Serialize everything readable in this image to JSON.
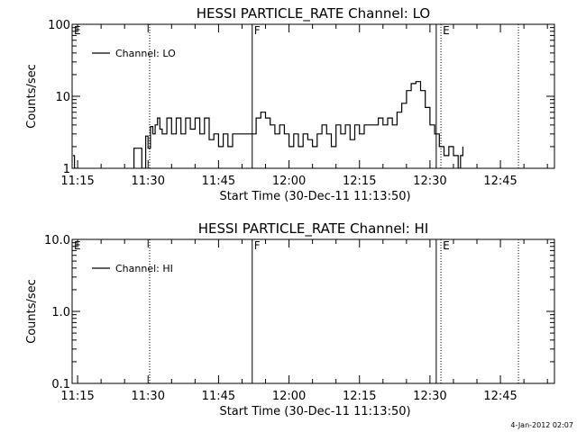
{
  "footer": {
    "timestamp": "4-Jan-2012 02:07"
  },
  "chart_data": [
    {
      "type": "line",
      "title": "HESSI PARTICLE_RATE Channel: LO",
      "xlabel": "Start Time (30-Dec-11 11:13:50)",
      "ylabel": "Counts/sec",
      "yscale": "log",
      "ylim": [
        1,
        100
      ],
      "yticks": [
        1,
        10,
        100
      ],
      "ytick_labels": [
        "1",
        "10",
        "100"
      ],
      "xlim": [
        "11:13:50",
        "12:56:30"
      ],
      "xticks": [
        "11:15",
        "11:30",
        "11:45",
        "12:00",
        "12:15",
        "12:30",
        "12:45"
      ],
      "grid": false,
      "legend": {
        "placement": "top-left",
        "entries": [
          "Channel: LO"
        ]
      },
      "markers": [
        {
          "label": "E",
          "time": "11:13:50",
          "style": "none"
        },
        {
          "label": "",
          "time": "11:30:20",
          "style": "dotted"
        },
        {
          "label": "F",
          "time": "11:52:10",
          "style": "solid"
        },
        {
          "label": "",
          "time": "12:31:20",
          "style": "solid"
        },
        {
          "label": "E",
          "time": "12:32:20",
          "style": "dotted"
        },
        {
          "label": "",
          "time": "12:48:50",
          "style": "dotted"
        }
      ],
      "series": [
        {
          "x": [
            "11:14:00",
            "11:14:20",
            "11:14:40",
            "11:27:00",
            "11:27:20",
            "11:28:40",
            "11:29:00",
            "11:29:30",
            "11:30:00",
            "11:30:30",
            "11:31:00",
            "11:31:30",
            "11:32:00",
            "11:32:30",
            "11:33:00",
            "11:34:00",
            "11:35:00",
            "11:36:00",
            "11:37:00",
            "11:38:00",
            "11:39:00",
            "11:40:00",
            "11:41:00",
            "11:42:00",
            "11:43:00",
            "11:44:00",
            "11:45:00",
            "11:46:00",
            "11:47:00",
            "11:48:00",
            "11:49:00",
            "11:50:00",
            "11:51:00",
            "11:52:00",
            "11:53:00",
            "11:54:00",
            "11:55:00",
            "11:56:00",
            "11:57:00",
            "11:58:00",
            "11:59:00",
            "12:00:00",
            "12:01:00",
            "12:02:00",
            "12:03:00",
            "12:04:00",
            "12:05:00",
            "12:06:00",
            "12:07:00",
            "12:08:00",
            "12:09:00",
            "12:10:00",
            "12:11:00",
            "12:12:00",
            "12:13:00",
            "12:14:00",
            "12:15:00",
            "12:16:00",
            "12:17:00",
            "12:18:00",
            "12:19:00",
            "12:20:00",
            "12:21:00",
            "12:22:00",
            "12:23:00",
            "12:24:00",
            "12:25:00",
            "12:26:00",
            "12:27:00",
            "12:28:00",
            "12:29:00",
            "12:30:00",
            "12:31:00",
            "12:32:00",
            "12:33:00",
            "12:34:00",
            "12:35:00",
            "12:36:00",
            "12:36:30",
            "12:37:00"
          ],
          "values": [
            1.5,
            1.0,
            0.8,
            1.9,
            1.9,
            0.9,
            1.0,
            2.8,
            1.9,
            3.8,
            3.0,
            4.0,
            5.0,
            3.5,
            3.0,
            5.0,
            3.0,
            5.0,
            3.0,
            5.0,
            3.5,
            5.0,
            3.0,
            5.0,
            2.5,
            3.0,
            2.0,
            3.0,
            2.0,
            3.0,
            3.0,
            3.0,
            3.0,
            3.0,
            5.0,
            6.0,
            5.0,
            4.0,
            3.0,
            4.0,
            3.0,
            2.0,
            3.0,
            2.0,
            3.0,
            2.5,
            2.0,
            3.0,
            4.0,
            3.0,
            2.0,
            4.0,
            3.0,
            4.0,
            2.5,
            4.0,
            3.0,
            4.0,
            4.0,
            4.0,
            5.0,
            4.0,
            5.0,
            4.0,
            6.0,
            8.0,
            12.0,
            15.0,
            16.0,
            12.0,
            7.0,
            4.0,
            3.0,
            2.0,
            1.5,
            2.0,
            1.5,
            1.0,
            1.5,
            2.0
          ]
        }
      ]
    },
    {
      "type": "line",
      "title": "HESSI PARTICLE_RATE Channel: HI",
      "xlabel": "Start Time (30-Dec-11 11:13:50)",
      "ylabel": "Counts/sec",
      "yscale": "log",
      "ylim": [
        0.1,
        10
      ],
      "yticks": [
        0.1,
        1,
        10
      ],
      "ytick_labels": [
        "0.1",
        "1.0",
        "10.0"
      ],
      "xlim": [
        "11:13:50",
        "12:56:30"
      ],
      "xticks": [
        "11:15",
        "11:30",
        "11:45",
        "12:00",
        "12:15",
        "12:30",
        "12:45"
      ],
      "grid": false,
      "legend": {
        "placement": "top-left",
        "entries": [
          "Channel: HI"
        ]
      },
      "markers": [
        {
          "label": "E",
          "time": "11:13:50",
          "style": "none"
        },
        {
          "label": "",
          "time": "11:30:20",
          "style": "dotted"
        },
        {
          "label": "F",
          "time": "11:52:10",
          "style": "solid"
        },
        {
          "label": "",
          "time": "12:31:20",
          "style": "solid"
        },
        {
          "label": "E",
          "time": "12:32:20",
          "style": "dotted"
        },
        {
          "label": "",
          "time": "12:48:50",
          "style": "dotted"
        }
      ],
      "series": [
        {
          "x": [],
          "values": []
        }
      ]
    }
  ]
}
